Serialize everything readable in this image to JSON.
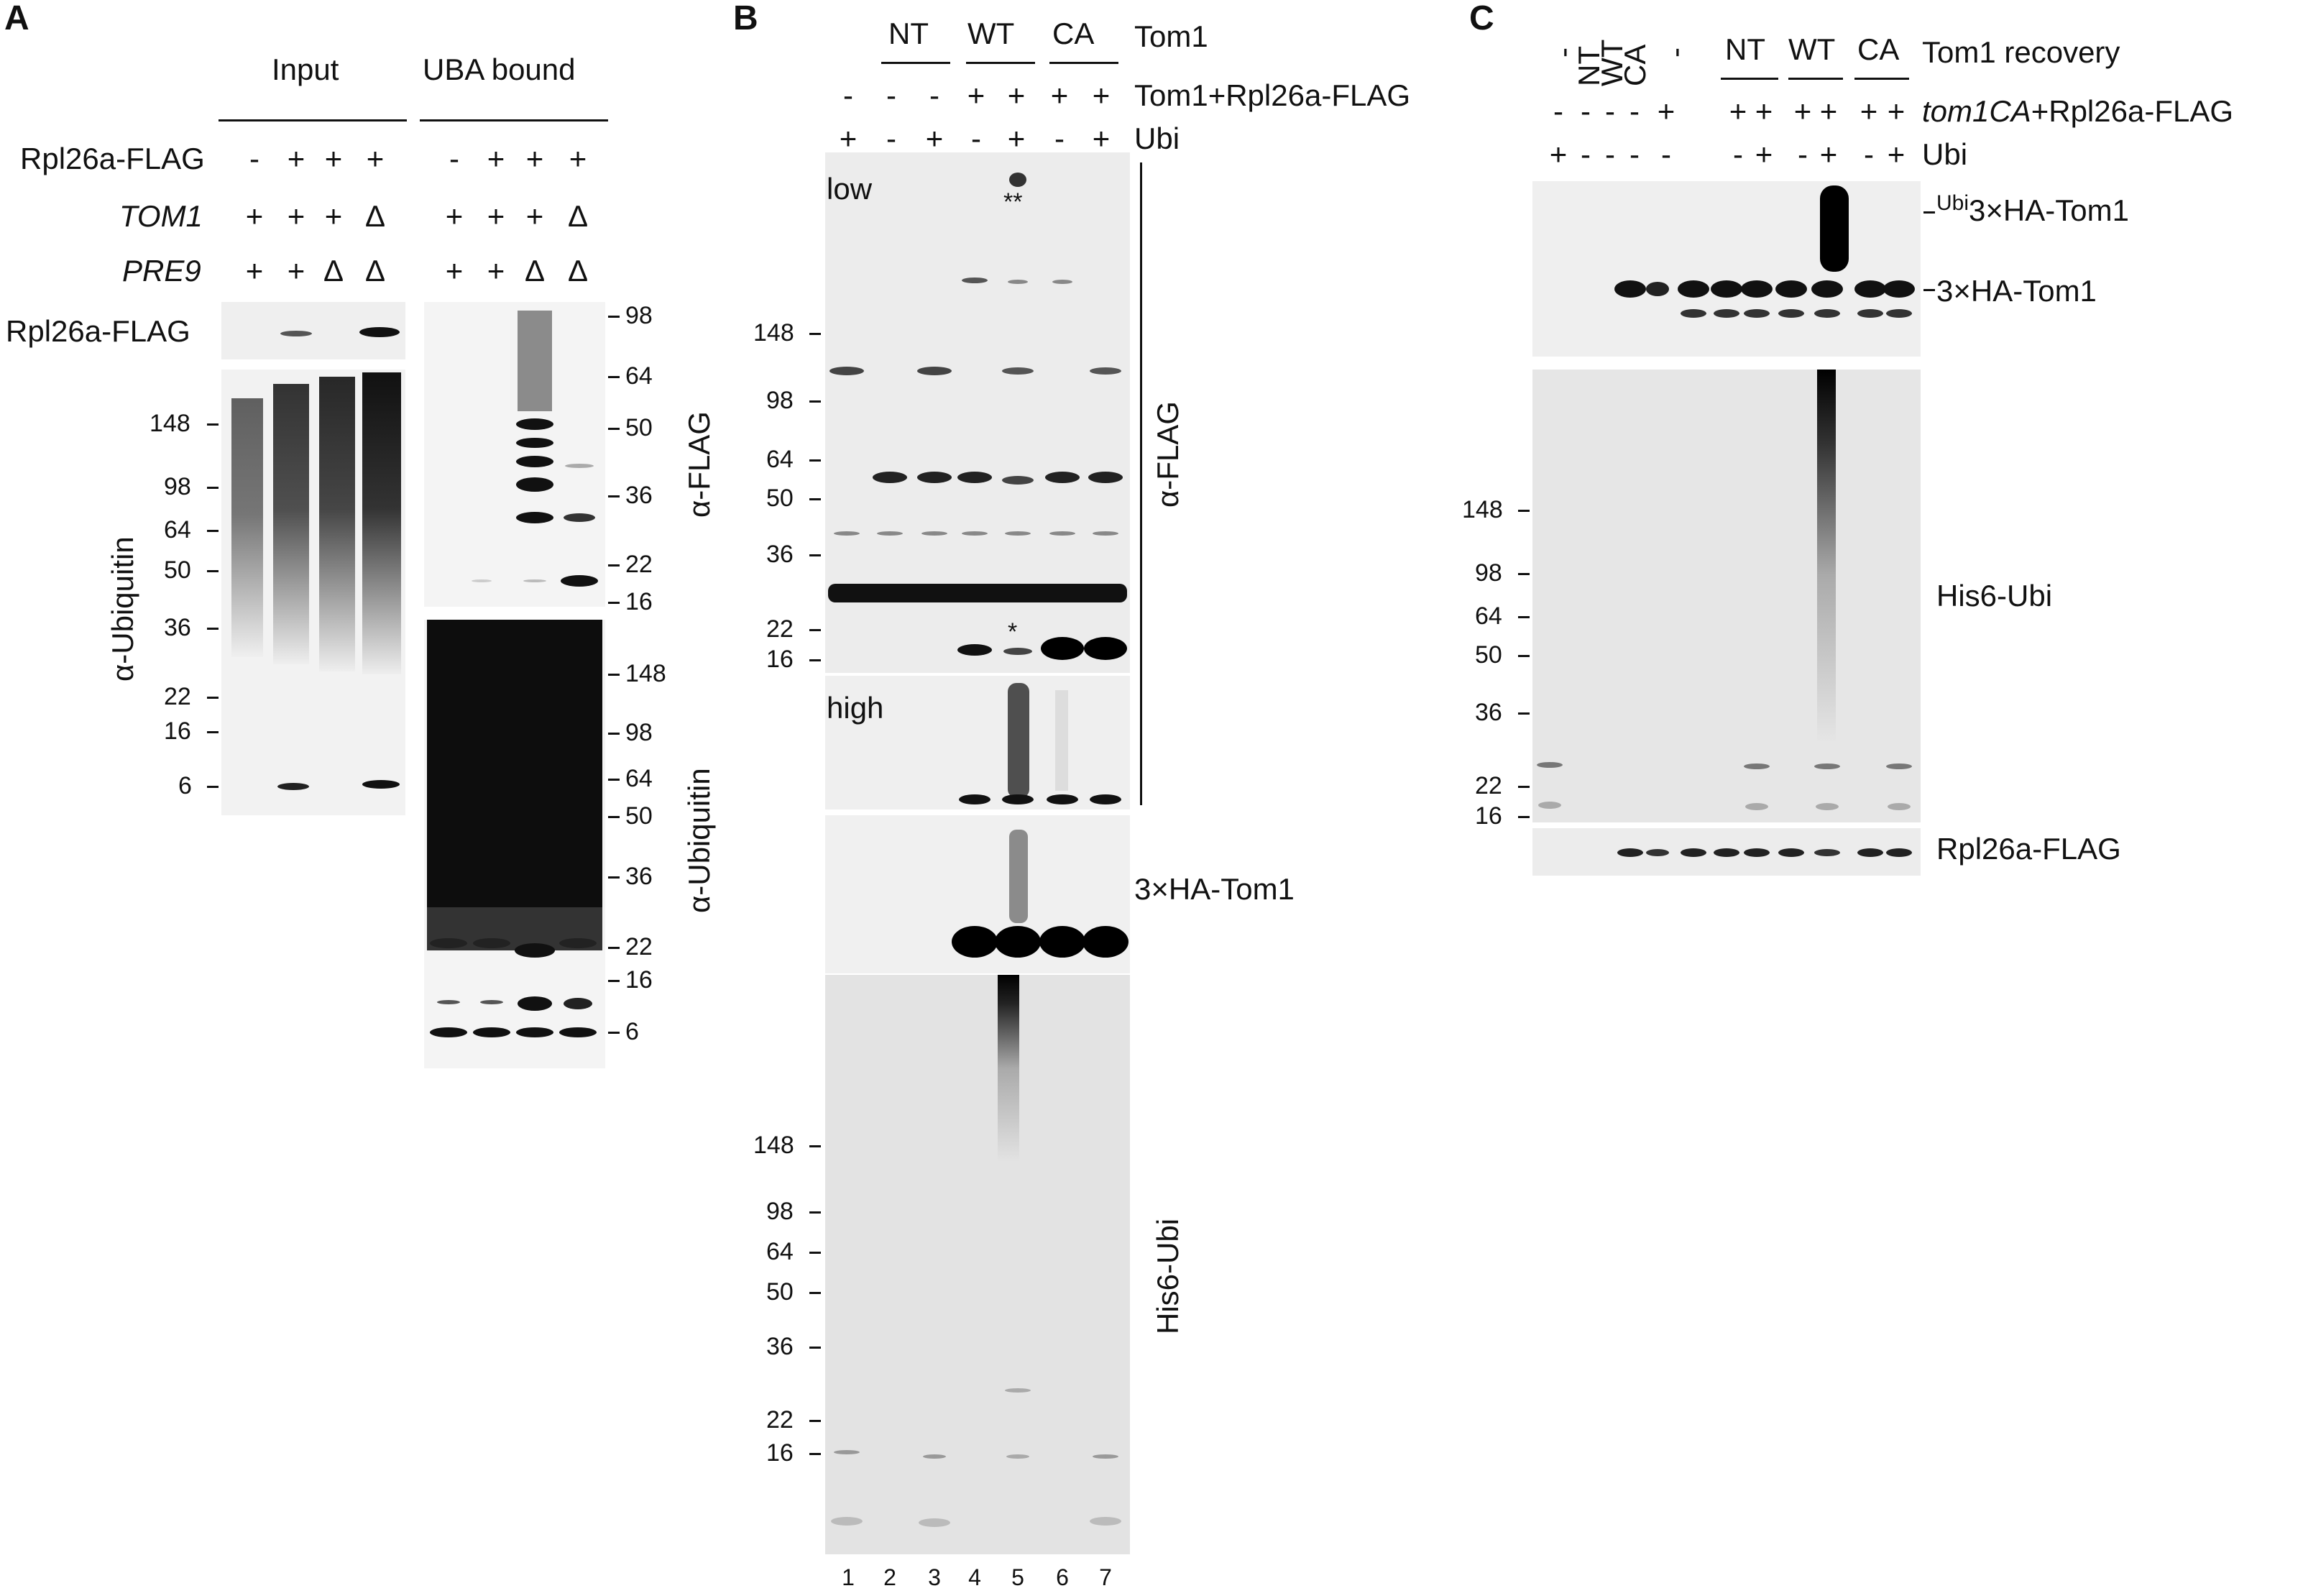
{
  "panels": {
    "A": {
      "letter": "A",
      "headers": {
        "input": "Input",
        "uba_bound": "UBA bound"
      },
      "rows": [
        {
          "label": "Rpl26a-FLAG",
          "italic": false,
          "input": [
            "-",
            "+",
            "+",
            "+"
          ],
          "uba": [
            "-",
            "+",
            "+",
            "+"
          ]
        },
        {
          "label": "TOM1",
          "italic": true,
          "input": [
            "+",
            "+",
            "+",
            "Δ"
          ],
          "uba": [
            "+",
            "+",
            "+",
            "Δ"
          ]
        },
        {
          "label": "PRE9",
          "italic": true,
          "input": [
            "+",
            "+",
            "Δ",
            "Δ"
          ],
          "uba": [
            "+",
            "+",
            "Δ",
            "Δ"
          ]
        }
      ],
      "strip_label": "Rpl26a-FLAG",
      "antibody_left": "α-Ubiquitin",
      "antibody_flag": "α-FLAG",
      "antibody_ubi_right": "α-Ubiquitin",
      "markers_left": [
        "148",
        "98",
        "64",
        "50",
        "36",
        "22",
        "16",
        "6"
      ],
      "markers_flag": [
        "98",
        "64",
        "50",
        "36",
        "22",
        "16"
      ],
      "markers_ubi": [
        "148",
        "98",
        "64",
        "50",
        "36",
        "22",
        "16",
        "6"
      ]
    },
    "B": {
      "letter": "B",
      "groups": [
        "NT",
        "WT",
        "CA"
      ],
      "group_row_label": "Tom1",
      "rows": [
        {
          "label": "Tom1+Rpl26a-FLAG",
          "values": [
            "-",
            "-",
            "-",
            "+",
            "+",
            "+",
            "+"
          ]
        },
        {
          "label": "Ubi",
          "values": [
            "+",
            "-",
            "+",
            "-",
            "+",
            "-",
            "+"
          ]
        }
      ],
      "exposure_low": "low",
      "exposure_high": "high",
      "annot_double_star": "**",
      "annot_star": "*",
      "antibody_flag": "α-FLAG",
      "blot_ha": "3×HA-Tom1",
      "blot_his": "His6-Ubi",
      "markers_flag": [
        "148",
        "98",
        "64",
        "50",
        "36",
        "22",
        "16"
      ],
      "markers_his": [
        "148",
        "98",
        "64",
        "50",
        "36",
        "22",
        "16"
      ],
      "lanes": [
        "1",
        "2",
        "3",
        "4",
        "5",
        "6",
        "7"
      ]
    },
    "C": {
      "letter": "C",
      "recovery_cols": [
        "-",
        "NT",
        "WT",
        "CA",
        "-"
      ],
      "groups": [
        "NT",
        "WT",
        "CA"
      ],
      "group_row_label": "Tom1 recovery",
      "rows": [
        {
          "label_italic": "tom1CA",
          "label_rest": "+Rpl26a-FLAG",
          "values": [
            "-",
            "-",
            "-",
            "-",
            "+",
            "+",
            "+",
            "+",
            "+",
            "+",
            "+"
          ]
        },
        {
          "label_italic": "",
          "label_rest": "Ubi",
          "values": [
            "+",
            "-",
            "-",
            "-",
            "-",
            "-",
            "+",
            "-",
            "+",
            "-",
            "+"
          ]
        }
      ],
      "band_ubi_sup": "Ubi",
      "band_ubi_tom1": "3×HA-Tom1",
      "band_tom1": "3×HA-Tom1",
      "blot_his": "His6-Ubi",
      "blot_rpl": "Rpl26a-FLAG",
      "markers_his": [
        "148",
        "98",
        "64",
        "50",
        "36",
        "22",
        "16"
      ]
    }
  }
}
